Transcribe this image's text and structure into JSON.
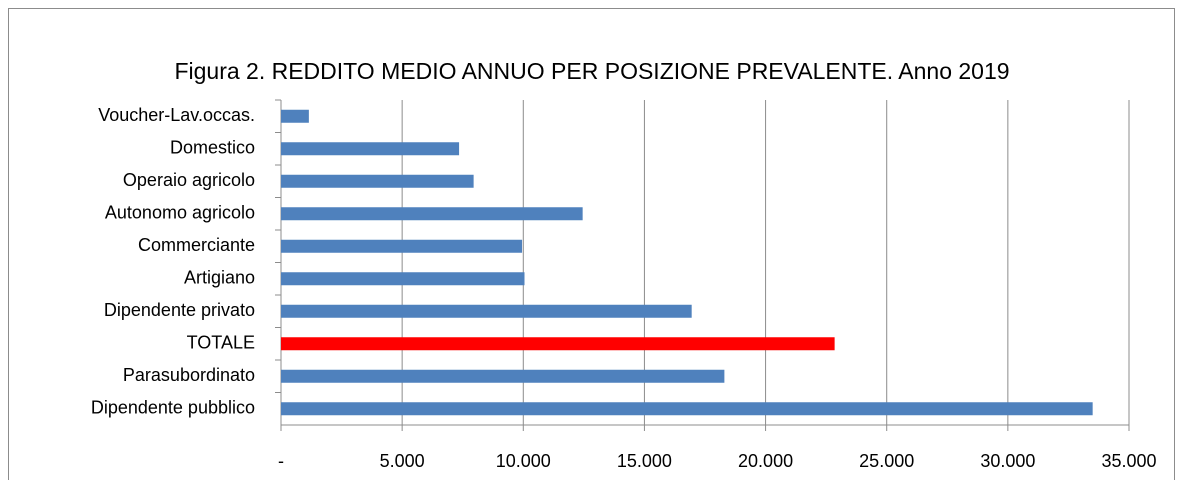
{
  "chart_data": {
    "type": "barh",
    "title": "Figura 2. REDDITO MEDIO ANNUO PER POSIZIONE PREVALENTE. Anno 2019",
    "categories": [
      "Voucher-Lav.occas.",
      "Domestico",
      "Operaio agricolo",
      "Autonomo agricolo",
      "Commerciante",
      "Artigiano",
      "Dipendente privato",
      "TOTALE",
      "Parasubordinato",
      "Dipendente pubblico"
    ],
    "values": [
      1150,
      7350,
      7950,
      12450,
      9950,
      10050,
      16950,
      22850,
      18300,
      33500
    ],
    "colors": [
      "#4f81bd",
      "#4f81bd",
      "#4f81bd",
      "#4f81bd",
      "#4f81bd",
      "#4f81bd",
      "#4f81bd",
      "#ff0000",
      "#4f81bd",
      "#4f81bd"
    ],
    "xlim": [
      0,
      35000
    ],
    "xticks": [
      {
        "value": 0,
        "label": "-"
      },
      {
        "value": 5000,
        "label": "5.000"
      },
      {
        "value": 10000,
        "label": "10.000"
      },
      {
        "value": 15000,
        "label": "15.000"
      },
      {
        "value": 20000,
        "label": "20.000"
      },
      {
        "value": 25000,
        "label": "25.000"
      },
      {
        "value": 30000,
        "label": "30.000"
      },
      {
        "value": 35000,
        "label": "35.000"
      }
    ],
    "grid": true
  }
}
